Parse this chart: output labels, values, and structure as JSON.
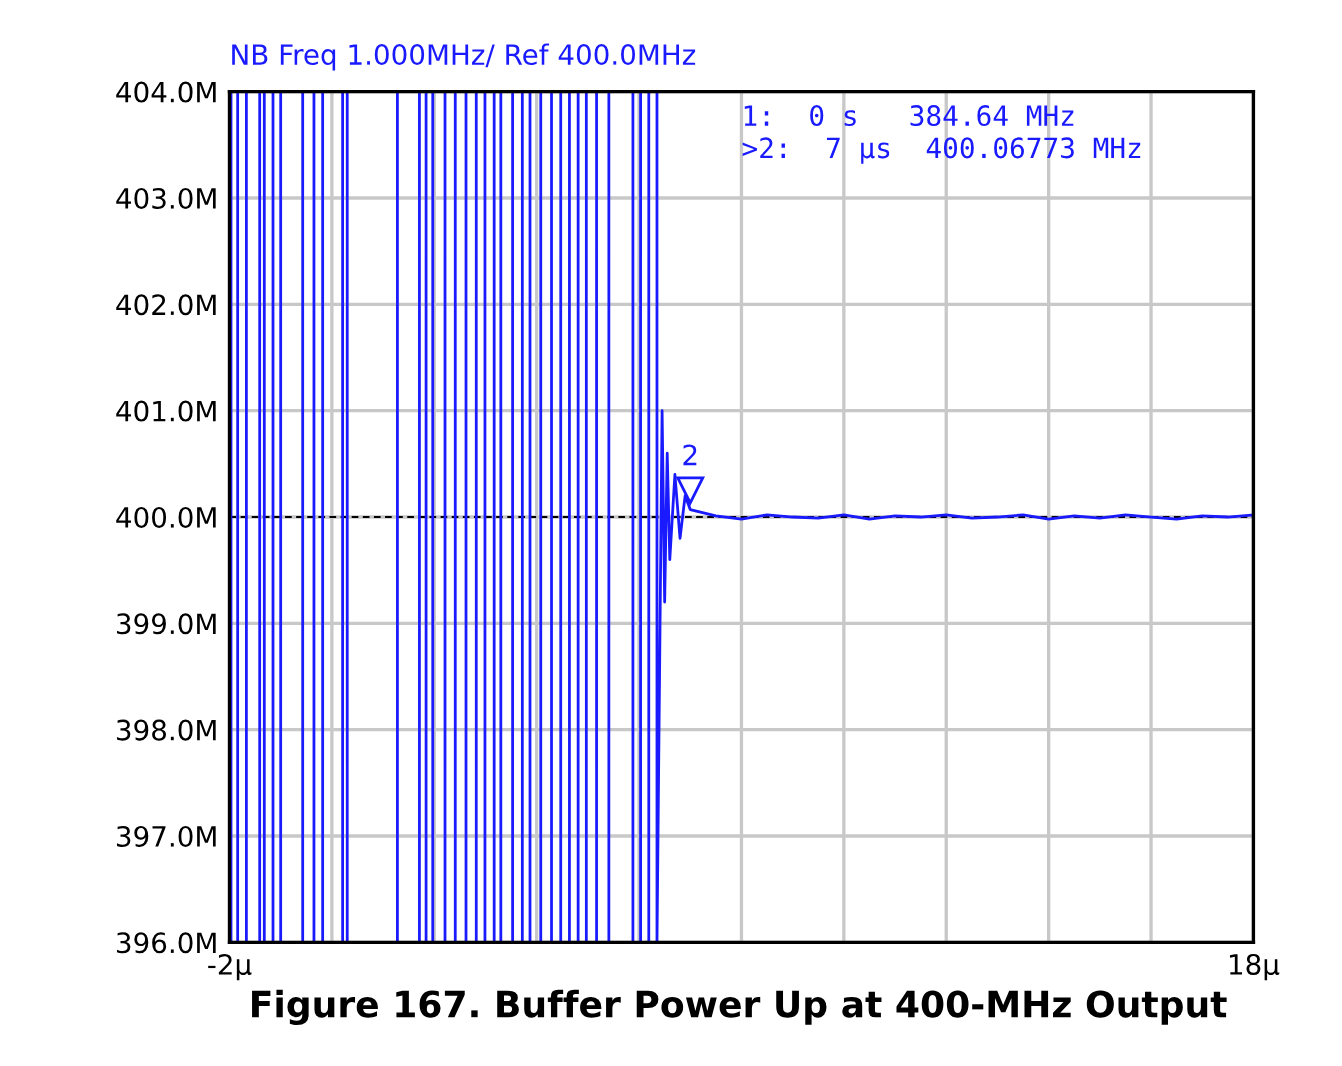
{
  "chart_data": {
    "type": "line",
    "title": "NB Freq 1.000MHz/ Ref 400.0MHz",
    "annotations": [
      "1:  0 s   384.64 MHz",
      ">2:  7 μs  400.06773 MHz",
      {
        "text": "2",
        "x": 7,
        "y": 400.06773
      },
      "Figure 167. Buffer Power Up at 400-MHz Output"
    ],
    "series": [
      {
        "color": "#1a1aff",
        "x": [
          -1.97,
          -1.97,
          -1.84,
          -1.84,
          -1.67,
          -1.67,
          -1.41,
          -1.41,
          -1.32,
          -1.32,
          -1.15,
          -1.15,
          -1.0,
          -1.0,
          -0.57,
          -0.57,
          -0.35,
          -0.35,
          -0.18,
          -0.18,
          0.21,
          0.21,
          0.3,
          0.3,
          1.28,
          1.28,
          1.71,
          1.71,
          1.84,
          1.84,
          1.97,
          1.97,
          2.21,
          2.21,
          2.41,
          2.41,
          2.62,
          2.62,
          2.82,
          2.82,
          2.99,
          2.99,
          3.17,
          3.17,
          3.3,
          3.3,
          3.53,
          3.53,
          3.72,
          3.72,
          3.87,
          3.87,
          4.08,
          4.08,
          4.29,
          4.29,
          4.47,
          4.47,
          4.64,
          4.64,
          4.81,
          4.81,
          4.97,
          4.97,
          5.17,
          5.17,
          5.41,
          5.41,
          5.88,
          5.88,
          6.03,
          6.03,
          6.19,
          6.19,
          6.35,
          6.35,
          6.45,
          6.5,
          6.55,
          6.6,
          6.7,
          6.8,
          6.9,
          7.0,
          7.5,
          8.0,
          8.5,
          9.0,
          9.5,
          10.0,
          10.5,
          11.0,
          11.5,
          12.0,
          12.5,
          13.0,
          13.5,
          14.0,
          14.5,
          15.0,
          15.5,
          16.0,
          16.5,
          17.0,
          17.5,
          18.0
        ],
        "values": [
          396,
          404,
          404,
          396,
          396,
          404,
          404,
          396,
          396,
          404,
          404,
          396,
          396,
          404,
          404,
          396,
          396,
          404,
          404,
          396,
          396,
          404,
          404,
          396,
          396,
          404,
          404,
          396,
          396,
          404,
          404,
          396,
          396,
          404,
          404,
          396,
          396,
          404,
          404,
          396,
          396,
          404,
          404,
          396,
          396,
          404,
          404,
          396,
          396,
          404,
          404,
          396,
          396,
          404,
          404,
          396,
          396,
          404,
          404,
          396,
          396,
          404,
          404,
          396,
          396,
          404,
          404,
          396,
          396,
          404,
          404,
          396,
          396,
          404,
          404,
          396,
          401.0,
          399.2,
          400.6,
          399.6,
          400.4,
          399.8,
          400.2,
          400.07,
          400.01,
          399.98,
          400.02,
          400.0,
          399.99,
          400.02,
          399.98,
          400.01,
          400.0,
          400.02,
          399.99,
          400.0,
          400.02,
          399.98,
          400.01,
          399.99,
          400.02,
          400.0,
          399.98,
          400.01,
          400.0,
          400.02
        ]
      }
    ],
    "xlim": [
      -2,
      18
    ],
    "xticks": [
      {
        "value": -2,
        "label": "-2μ"
      },
      {
        "value": 0,
        "label": null
      },
      {
        "value": 2,
        "label": null
      },
      {
        "value": 4,
        "label": null
      },
      {
        "value": 6,
        "label": null
      },
      {
        "value": 8,
        "label": null
      },
      {
        "value": 10,
        "label": null
      },
      {
        "value": 12,
        "label": null
      },
      {
        "value": 14,
        "label": null
      },
      {
        "value": 16,
        "label": null
      },
      {
        "value": 18,
        "label": "18μ"
      }
    ],
    "ylim": [
      396,
      404
    ],
    "yticks": [
      {
        "value": 396,
        "label": "396.0M"
      },
      {
        "value": 397,
        "label": "397.0M"
      },
      {
        "value": 398,
        "label": "398.0M"
      },
      {
        "value": 399,
        "label": "399.0M"
      },
      {
        "value": 400,
        "label": "400.0M"
      },
      {
        "value": 401,
        "label": "401.0M"
      },
      {
        "value": 402,
        "label": "402.0M"
      },
      {
        "value": 403,
        "label": "403.0M"
      },
      {
        "value": 404,
        "label": "404.0M"
      }
    ],
    "ref_lines": [
      {
        "axis": "y",
        "value": 400,
        "color": "#000000",
        "line_style": "dashed"
      }
    ],
    "grid": true,
    "legend": false,
    "marker": "none",
    "line_style": "solid"
  }
}
